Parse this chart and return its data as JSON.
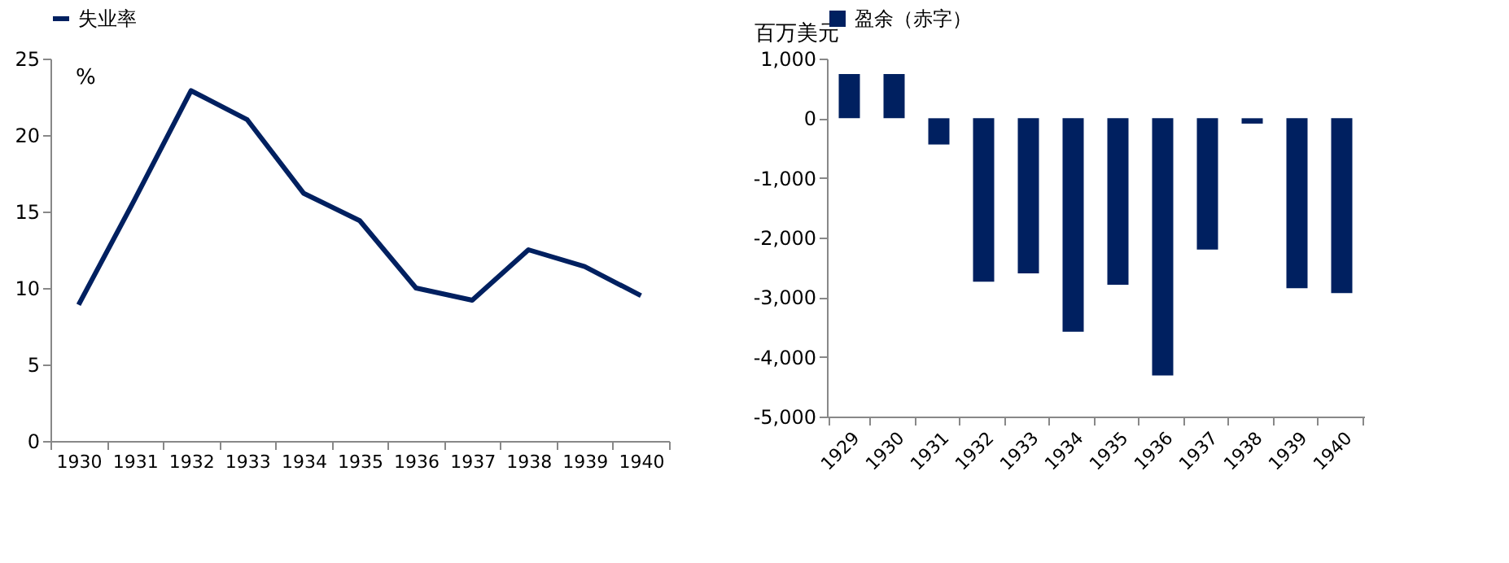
{
  "chart_data": [
    {
      "type": "line",
      "ylabel": "%",
      "categories": [
        "1930",
        "1931",
        "1932",
        "1933",
        "1934",
        "1935",
        "1936",
        "1937",
        "1938",
        "1939",
        "1940"
      ],
      "series": [
        {
          "name": "失业率",
          "color": "#002060",
          "values": [
            8.9,
            15.8,
            22.9,
            21.0,
            16.2,
            14.4,
            10.0,
            9.2,
            12.5,
            11.4,
            9.5
          ]
        }
      ],
      "ylim": [
        0,
        25
      ],
      "yticks": [
        0,
        5,
        10,
        15,
        20,
        25
      ],
      "grid": false,
      "legend": "top",
      "marker": "none",
      "line_style": "solid"
    },
    {
      "type": "bar",
      "ylabel": "百万美元",
      "categories": [
        "1929",
        "1930",
        "1931",
        "1932",
        "1933",
        "1934",
        "1935",
        "1936",
        "1937",
        "1938",
        "1939",
        "1940"
      ],
      "series": [
        {
          "name": "盈余（赤字）",
          "color": "#002060",
          "values": [
            740,
            740,
            -440,
            -2740,
            -2600,
            -3580,
            -2790,
            -4310,
            -2200,
            -90,
            -2850,
            -2930
          ]
        }
      ],
      "ylim": [
        -5000,
        1000
      ],
      "yticks": [
        {
          "value": 1000,
          "label": "1,000"
        },
        0,
        {
          "value": -1000,
          "label": "-1,000"
        },
        {
          "value": -2000,
          "label": "-2,000"
        },
        {
          "value": -3000,
          "label": "-3,000"
        },
        {
          "value": -4000,
          "label": "-4,000"
        },
        {
          "value": -5000,
          "label": "-5,000"
        }
      ],
      "grid": false,
      "legend": "top"
    }
  ]
}
